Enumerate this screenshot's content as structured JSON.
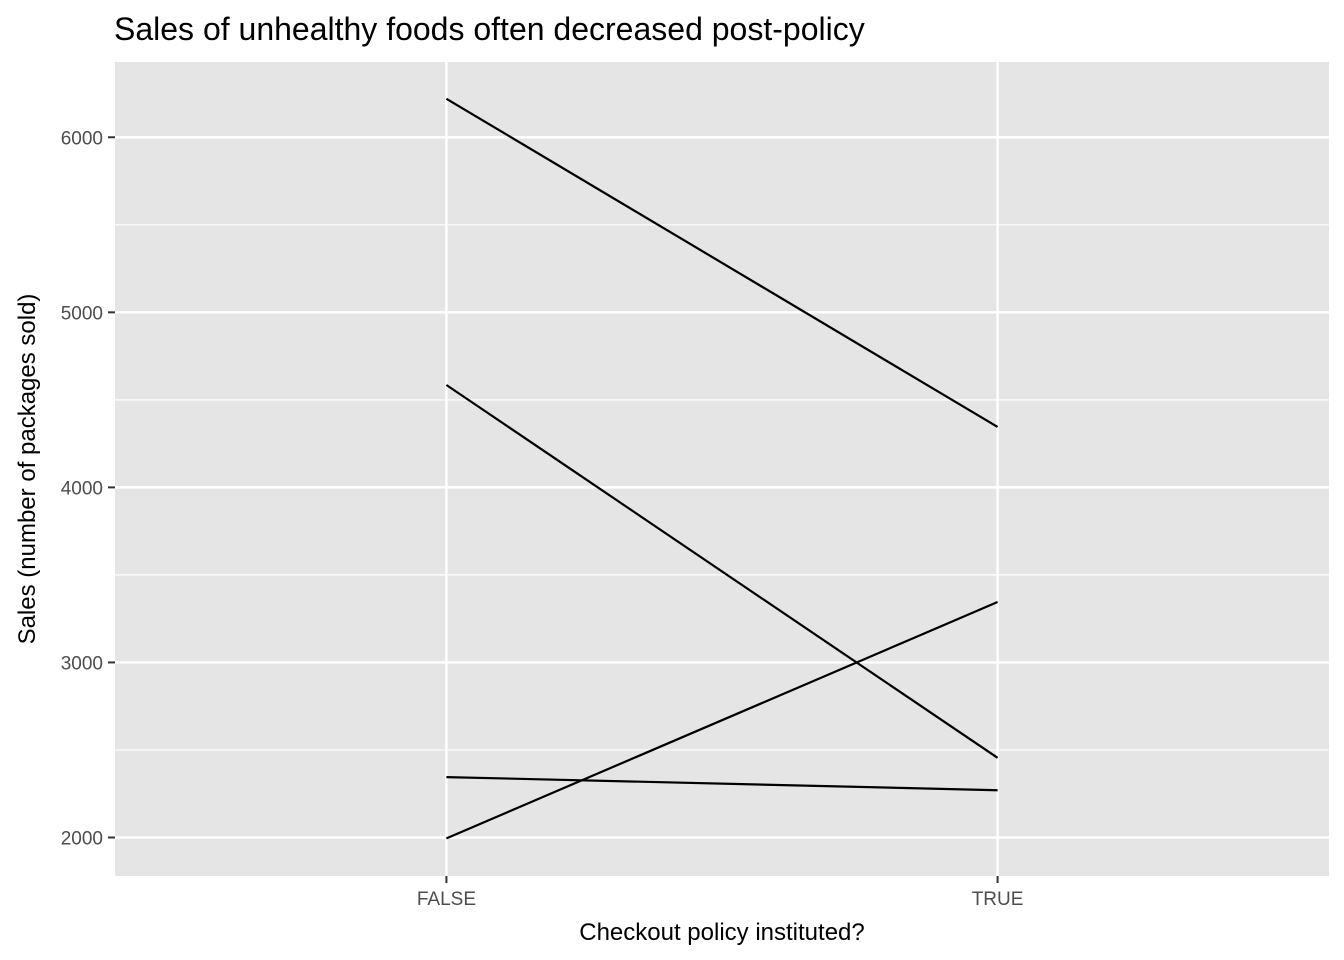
{
  "chart_data": {
    "type": "line",
    "title": "Sales of unhealthy foods often decreased post-policy",
    "xlabel": "Checkout policy instituted?",
    "ylabel": "Sales (number of packages sold)",
    "categories": [
      "FALSE",
      "TRUE"
    ],
    "ylim": [
      1780,
      6430
    ],
    "yticks": [
      2000,
      3000,
      4000,
      5000,
      6000
    ],
    "grid": true,
    "legend": "none",
    "series": [
      {
        "values": [
          6220,
          4345
        ]
      },
      {
        "values": [
          4585,
          2455
        ]
      },
      {
        "values": [
          2345,
          2270
        ]
      },
      {
        "values": [
          1995,
          3345
        ]
      }
    ],
    "colors": {
      "panel": "#e5e5e5",
      "grid": "#ffffff",
      "line": "#000000",
      "tick_text": "#4d4d4d"
    }
  }
}
